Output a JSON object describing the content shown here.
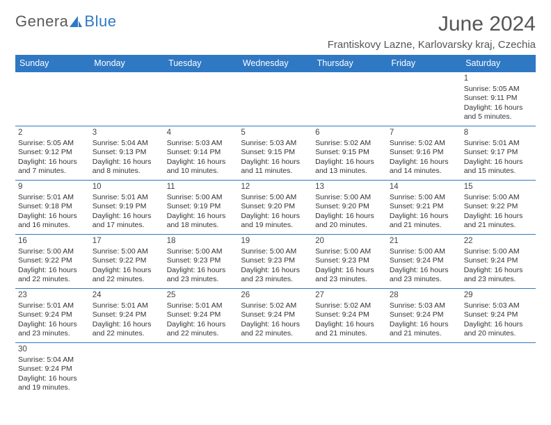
{
  "logo": {
    "part1": "Genera",
    "part2": "Blue"
  },
  "header": {
    "title": "June 2024",
    "location": "Frantiskovy Lazne, Karlovarsky kraj, Czechia"
  },
  "colors": {
    "header_bg": "#2f78c4",
    "header_text": "#ffffff",
    "cell_border": "#2f78c4",
    "text": "#333333",
    "title_text": "#555555"
  },
  "day_headers": [
    "Sunday",
    "Monday",
    "Tuesday",
    "Wednesday",
    "Thursday",
    "Friday",
    "Saturday"
  ],
  "weeks": [
    [
      null,
      null,
      null,
      null,
      null,
      null,
      {
        "n": "1",
        "sunrise": "Sunrise: 5:05 AM",
        "sunset": "Sunset: 9:11 PM",
        "daylight1": "Daylight: 16 hours",
        "daylight2": "and 5 minutes."
      }
    ],
    [
      {
        "n": "2",
        "sunrise": "Sunrise: 5:05 AM",
        "sunset": "Sunset: 9:12 PM",
        "daylight1": "Daylight: 16 hours",
        "daylight2": "and 7 minutes."
      },
      {
        "n": "3",
        "sunrise": "Sunrise: 5:04 AM",
        "sunset": "Sunset: 9:13 PM",
        "daylight1": "Daylight: 16 hours",
        "daylight2": "and 8 minutes."
      },
      {
        "n": "4",
        "sunrise": "Sunrise: 5:03 AM",
        "sunset": "Sunset: 9:14 PM",
        "daylight1": "Daylight: 16 hours",
        "daylight2": "and 10 minutes."
      },
      {
        "n": "5",
        "sunrise": "Sunrise: 5:03 AM",
        "sunset": "Sunset: 9:15 PM",
        "daylight1": "Daylight: 16 hours",
        "daylight2": "and 11 minutes."
      },
      {
        "n": "6",
        "sunrise": "Sunrise: 5:02 AM",
        "sunset": "Sunset: 9:15 PM",
        "daylight1": "Daylight: 16 hours",
        "daylight2": "and 13 minutes."
      },
      {
        "n": "7",
        "sunrise": "Sunrise: 5:02 AM",
        "sunset": "Sunset: 9:16 PM",
        "daylight1": "Daylight: 16 hours",
        "daylight2": "and 14 minutes."
      },
      {
        "n": "8",
        "sunrise": "Sunrise: 5:01 AM",
        "sunset": "Sunset: 9:17 PM",
        "daylight1": "Daylight: 16 hours",
        "daylight2": "and 15 minutes."
      }
    ],
    [
      {
        "n": "9",
        "sunrise": "Sunrise: 5:01 AM",
        "sunset": "Sunset: 9:18 PM",
        "daylight1": "Daylight: 16 hours",
        "daylight2": "and 16 minutes."
      },
      {
        "n": "10",
        "sunrise": "Sunrise: 5:01 AM",
        "sunset": "Sunset: 9:19 PM",
        "daylight1": "Daylight: 16 hours",
        "daylight2": "and 17 minutes."
      },
      {
        "n": "11",
        "sunrise": "Sunrise: 5:00 AM",
        "sunset": "Sunset: 9:19 PM",
        "daylight1": "Daylight: 16 hours",
        "daylight2": "and 18 minutes."
      },
      {
        "n": "12",
        "sunrise": "Sunrise: 5:00 AM",
        "sunset": "Sunset: 9:20 PM",
        "daylight1": "Daylight: 16 hours",
        "daylight2": "and 19 minutes."
      },
      {
        "n": "13",
        "sunrise": "Sunrise: 5:00 AM",
        "sunset": "Sunset: 9:20 PM",
        "daylight1": "Daylight: 16 hours",
        "daylight2": "and 20 minutes."
      },
      {
        "n": "14",
        "sunrise": "Sunrise: 5:00 AM",
        "sunset": "Sunset: 9:21 PM",
        "daylight1": "Daylight: 16 hours",
        "daylight2": "and 21 minutes."
      },
      {
        "n": "15",
        "sunrise": "Sunrise: 5:00 AM",
        "sunset": "Sunset: 9:22 PM",
        "daylight1": "Daylight: 16 hours",
        "daylight2": "and 21 minutes."
      }
    ],
    [
      {
        "n": "16",
        "sunrise": "Sunrise: 5:00 AM",
        "sunset": "Sunset: 9:22 PM",
        "daylight1": "Daylight: 16 hours",
        "daylight2": "and 22 minutes."
      },
      {
        "n": "17",
        "sunrise": "Sunrise: 5:00 AM",
        "sunset": "Sunset: 9:22 PM",
        "daylight1": "Daylight: 16 hours",
        "daylight2": "and 22 minutes."
      },
      {
        "n": "18",
        "sunrise": "Sunrise: 5:00 AM",
        "sunset": "Sunset: 9:23 PM",
        "daylight1": "Daylight: 16 hours",
        "daylight2": "and 23 minutes."
      },
      {
        "n": "19",
        "sunrise": "Sunrise: 5:00 AM",
        "sunset": "Sunset: 9:23 PM",
        "daylight1": "Daylight: 16 hours",
        "daylight2": "and 23 minutes."
      },
      {
        "n": "20",
        "sunrise": "Sunrise: 5:00 AM",
        "sunset": "Sunset: 9:23 PM",
        "daylight1": "Daylight: 16 hours",
        "daylight2": "and 23 minutes."
      },
      {
        "n": "21",
        "sunrise": "Sunrise: 5:00 AM",
        "sunset": "Sunset: 9:24 PM",
        "daylight1": "Daylight: 16 hours",
        "daylight2": "and 23 minutes."
      },
      {
        "n": "22",
        "sunrise": "Sunrise: 5:00 AM",
        "sunset": "Sunset: 9:24 PM",
        "daylight1": "Daylight: 16 hours",
        "daylight2": "and 23 minutes."
      }
    ],
    [
      {
        "n": "23",
        "sunrise": "Sunrise: 5:01 AM",
        "sunset": "Sunset: 9:24 PM",
        "daylight1": "Daylight: 16 hours",
        "daylight2": "and 23 minutes."
      },
      {
        "n": "24",
        "sunrise": "Sunrise: 5:01 AM",
        "sunset": "Sunset: 9:24 PM",
        "daylight1": "Daylight: 16 hours",
        "daylight2": "and 22 minutes."
      },
      {
        "n": "25",
        "sunrise": "Sunrise: 5:01 AM",
        "sunset": "Sunset: 9:24 PM",
        "daylight1": "Daylight: 16 hours",
        "daylight2": "and 22 minutes."
      },
      {
        "n": "26",
        "sunrise": "Sunrise: 5:02 AM",
        "sunset": "Sunset: 9:24 PM",
        "daylight1": "Daylight: 16 hours",
        "daylight2": "and 22 minutes."
      },
      {
        "n": "27",
        "sunrise": "Sunrise: 5:02 AM",
        "sunset": "Sunset: 9:24 PM",
        "daylight1": "Daylight: 16 hours",
        "daylight2": "and 21 minutes."
      },
      {
        "n": "28",
        "sunrise": "Sunrise: 5:03 AM",
        "sunset": "Sunset: 9:24 PM",
        "daylight1": "Daylight: 16 hours",
        "daylight2": "and 21 minutes."
      },
      {
        "n": "29",
        "sunrise": "Sunrise: 5:03 AM",
        "sunset": "Sunset: 9:24 PM",
        "daylight1": "Daylight: 16 hours",
        "daylight2": "and 20 minutes."
      }
    ],
    [
      {
        "n": "30",
        "sunrise": "Sunrise: 5:04 AM",
        "sunset": "Sunset: 9:24 PM",
        "daylight1": "Daylight: 16 hours",
        "daylight2": "and 19 minutes."
      },
      null,
      null,
      null,
      null,
      null,
      null
    ]
  ]
}
